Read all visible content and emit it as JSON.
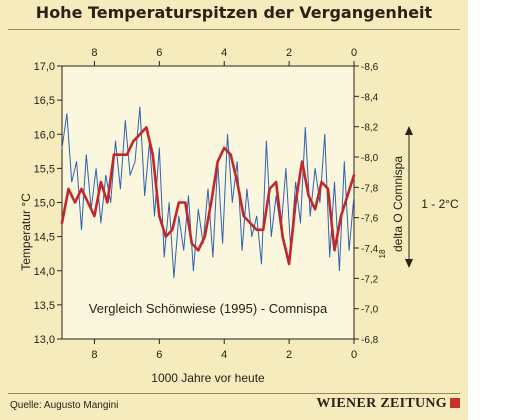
{
  "header": {
    "title": "Hohe Temperaturspitzen der Vergangenheit"
  },
  "footer": {
    "source": "Quelle: Augusto Mangini",
    "brand": "WIENER ZEITUNG"
  },
  "colors": {
    "background": "#f6ebbd",
    "plot": "#fbf6de",
    "red_series": "#c0282c",
    "blue_series": "#2f62b0"
  },
  "chart_data": {
    "type": "line",
    "title": "",
    "annotation": "Vergleich Schönwiese (1995) - Comnispa",
    "range_note": "1 -  2°C",
    "xlabel": "1000 Jahre vor heute",
    "xlim": [
      9,
      0
    ],
    "xticks": [
      "8",
      "6",
      "4",
      "2",
      "0"
    ],
    "ylabel_left": "Temperatur °C",
    "ylim_left": [
      13.0,
      17.0
    ],
    "yticks_left": [
      "17,0",
      "16,5",
      "16,0",
      "15,5",
      "15,0",
      "14,5",
      "14,0",
      "13,5",
      "13,0"
    ],
    "ylabel_right": "delta O Comnispa",
    "ylabel_right_sub": "18",
    "ylim_right": [
      -6.8,
      -8.6
    ],
    "yticks_right": [
      "-8,6",
      "-8,4",
      "-8,2",
      "-8,0",
      "-7,8",
      "-7,6",
      "-7,4",
      "-7,2",
      "-7,0",
      "-6,8"
    ],
    "grid": false,
    "series": [
      {
        "axis": "left",
        "x": [
          9.0,
          8.8,
          8.6,
          8.4,
          8.2,
          8.0,
          7.8,
          7.6,
          7.4,
          7.2,
          7.0,
          6.8,
          6.6,
          6.4,
          6.2,
          6.0,
          5.8,
          5.6,
          5.4,
          5.2,
          5.0,
          4.8,
          4.6,
          4.4,
          4.2,
          4.0,
          3.8,
          3.6,
          3.4,
          3.2,
          3.0,
          2.8,
          2.6,
          2.4,
          2.2,
          2.0,
          1.8,
          1.6,
          1.4,
          1.2,
          1.0,
          0.8,
          0.6,
          0.4,
          0.2,
          0.0
        ],
        "values": [
          14.7,
          15.2,
          15.0,
          15.2,
          15.0,
          14.8,
          15.3,
          15.0,
          15.7,
          15.7,
          15.7,
          15.9,
          16.0,
          16.1,
          15.7,
          14.8,
          14.5,
          14.6,
          15.0,
          15.0,
          14.4,
          14.3,
          14.5,
          15.0,
          15.6,
          15.8,
          15.7,
          15.3,
          14.8,
          14.7,
          14.6,
          14.6,
          15.2,
          15.3,
          14.5,
          14.1,
          15.0,
          15.6,
          15.1,
          14.9,
          15.3,
          15.2,
          14.3,
          14.8,
          15.1,
          15.4
        ]
      },
      {
        "axis": "left",
        "x": [
          9.0,
          8.85,
          8.7,
          8.55,
          8.4,
          8.25,
          8.1,
          7.95,
          7.8,
          7.65,
          7.5,
          7.35,
          7.2,
          7.05,
          6.9,
          6.75,
          6.6,
          6.45,
          6.3,
          6.15,
          6.0,
          5.85,
          5.7,
          5.55,
          5.4,
          5.25,
          5.1,
          4.95,
          4.8,
          4.65,
          4.5,
          4.35,
          4.2,
          4.05,
          3.9,
          3.75,
          3.6,
          3.45,
          3.3,
          3.15,
          3.0,
          2.85,
          2.7,
          2.55,
          2.4,
          2.25,
          2.1,
          1.95,
          1.8,
          1.65,
          1.5,
          1.35,
          1.2,
          1.05,
          0.9,
          0.75,
          0.6,
          0.45,
          0.3,
          0.15,
          0.0
        ],
        "values": [
          15.8,
          16.3,
          15.3,
          15.6,
          14.6,
          15.7,
          14.9,
          15.5,
          14.7,
          15.4,
          15.0,
          15.9,
          15.2,
          16.2,
          15.4,
          15.6,
          16.4,
          15.1,
          15.9,
          14.8,
          15.8,
          14.2,
          15.0,
          13.9,
          14.8,
          14.3,
          15.1,
          14.0,
          14.9,
          14.4,
          15.2,
          14.2,
          15.6,
          14.4,
          16.0,
          15.0,
          15.6,
          14.3,
          15.2,
          14.5,
          14.8,
          14.1,
          15.9,
          14.5,
          15.1,
          14.6,
          15.5,
          14.3,
          15.3,
          14.7,
          16.1,
          14.8,
          15.5,
          15.0,
          16.0,
          14.2,
          15.3,
          14.0,
          15.6,
          14.3,
          15.1
        ]
      }
    ]
  }
}
